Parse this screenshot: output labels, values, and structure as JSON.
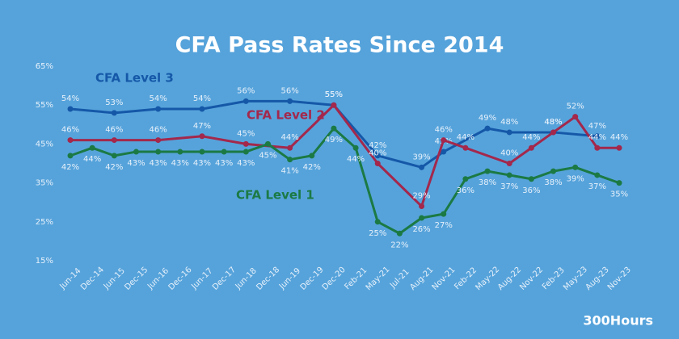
{
  "chart_data": {
    "type": "line",
    "title": "CFA Pass Rates Since 2014",
    "brand": "300Hours",
    "categories": [
      "Jun-14",
      "Dec-14",
      "Jun-15",
      "Dec-15",
      "Jun-16",
      "Dec-16",
      "Jun-17",
      "Dec-17",
      "Jun-18",
      "Dec-18",
      "Jun-19",
      "Dec-19",
      "Dec-20",
      "Feb-21",
      "May-21",
      "Jul-21",
      "Aug-21",
      "Nov-21",
      "Feb-22",
      "May-22",
      "Aug-22",
      "Nov-22",
      "Feb-23",
      "May-23",
      "Aug-23",
      "Nov-23"
    ],
    "ylim": [
      15,
      65
    ],
    "yticks": [
      {
        "value": 15,
        "label": "15%"
      },
      {
        "value": 25,
        "label": "25%"
      },
      {
        "value": 35,
        "label": "35%"
      },
      {
        "value": 45,
        "label": "45%"
      },
      {
        "value": 55,
        "label": "55%"
      },
      {
        "value": 65,
        "label": "65%"
      }
    ],
    "series": [
      {
        "name": "CFA Level 3",
        "color": "#1558a8",
        "values": [
          54,
          null,
          53,
          null,
          54,
          null,
          54,
          null,
          56,
          null,
          56,
          null,
          55,
          null,
          42,
          null,
          39,
          43,
          null,
          49,
          48,
          null,
          48,
          null,
          47,
          null
        ],
        "value_labels": [
          "54%",
          null,
          "53%",
          null,
          "54%",
          null,
          "54%",
          null,
          "56%",
          null,
          "56%",
          null,
          "55%",
          null,
          "42%",
          null,
          "39%",
          "43%",
          null,
          "49%",
          "48%",
          null,
          "48%",
          null,
          "47%",
          null
        ]
      },
      {
        "name": "CFA Level 2",
        "color": "#a3284c",
        "values": [
          46,
          null,
          46,
          null,
          46,
          null,
          47,
          null,
          45,
          null,
          44,
          null,
          55,
          null,
          40,
          null,
          29,
          46,
          44,
          null,
          40,
          44,
          48,
          52,
          44,
          44
        ],
        "value_labels": [
          "46%",
          null,
          "46%",
          null,
          "46%",
          null,
          "47%",
          null,
          "45%",
          null,
          "44%",
          null,
          "55%",
          null,
          "40%",
          null,
          "29%",
          "46%",
          "44%",
          null,
          "40%",
          "44%",
          "48%",
          "52%",
          "44%",
          "44%"
        ]
      },
      {
        "name": "CFA Level 1",
        "color": "#1b7a44",
        "values": [
          42,
          44,
          42,
          43,
          43,
          43,
          43,
          43,
          43,
          45,
          41,
          42,
          49,
          44,
          25,
          22,
          26,
          27,
          36,
          38,
          37,
          36,
          38,
          39,
          37,
          35
        ],
        "value_labels": [
          "42%",
          "44%",
          "42%",
          "43%",
          "43%",
          "43%",
          "43%",
          "43%",
          "43%",
          "45%",
          "41%",
          "42%",
          "49%",
          "44%",
          "25%",
          "22%",
          "26%",
          "27%",
          "36%",
          "38%",
          "37%",
          "36%",
          "38%",
          "39%",
          "37%",
          "35%"
        ]
      }
    ]
  }
}
